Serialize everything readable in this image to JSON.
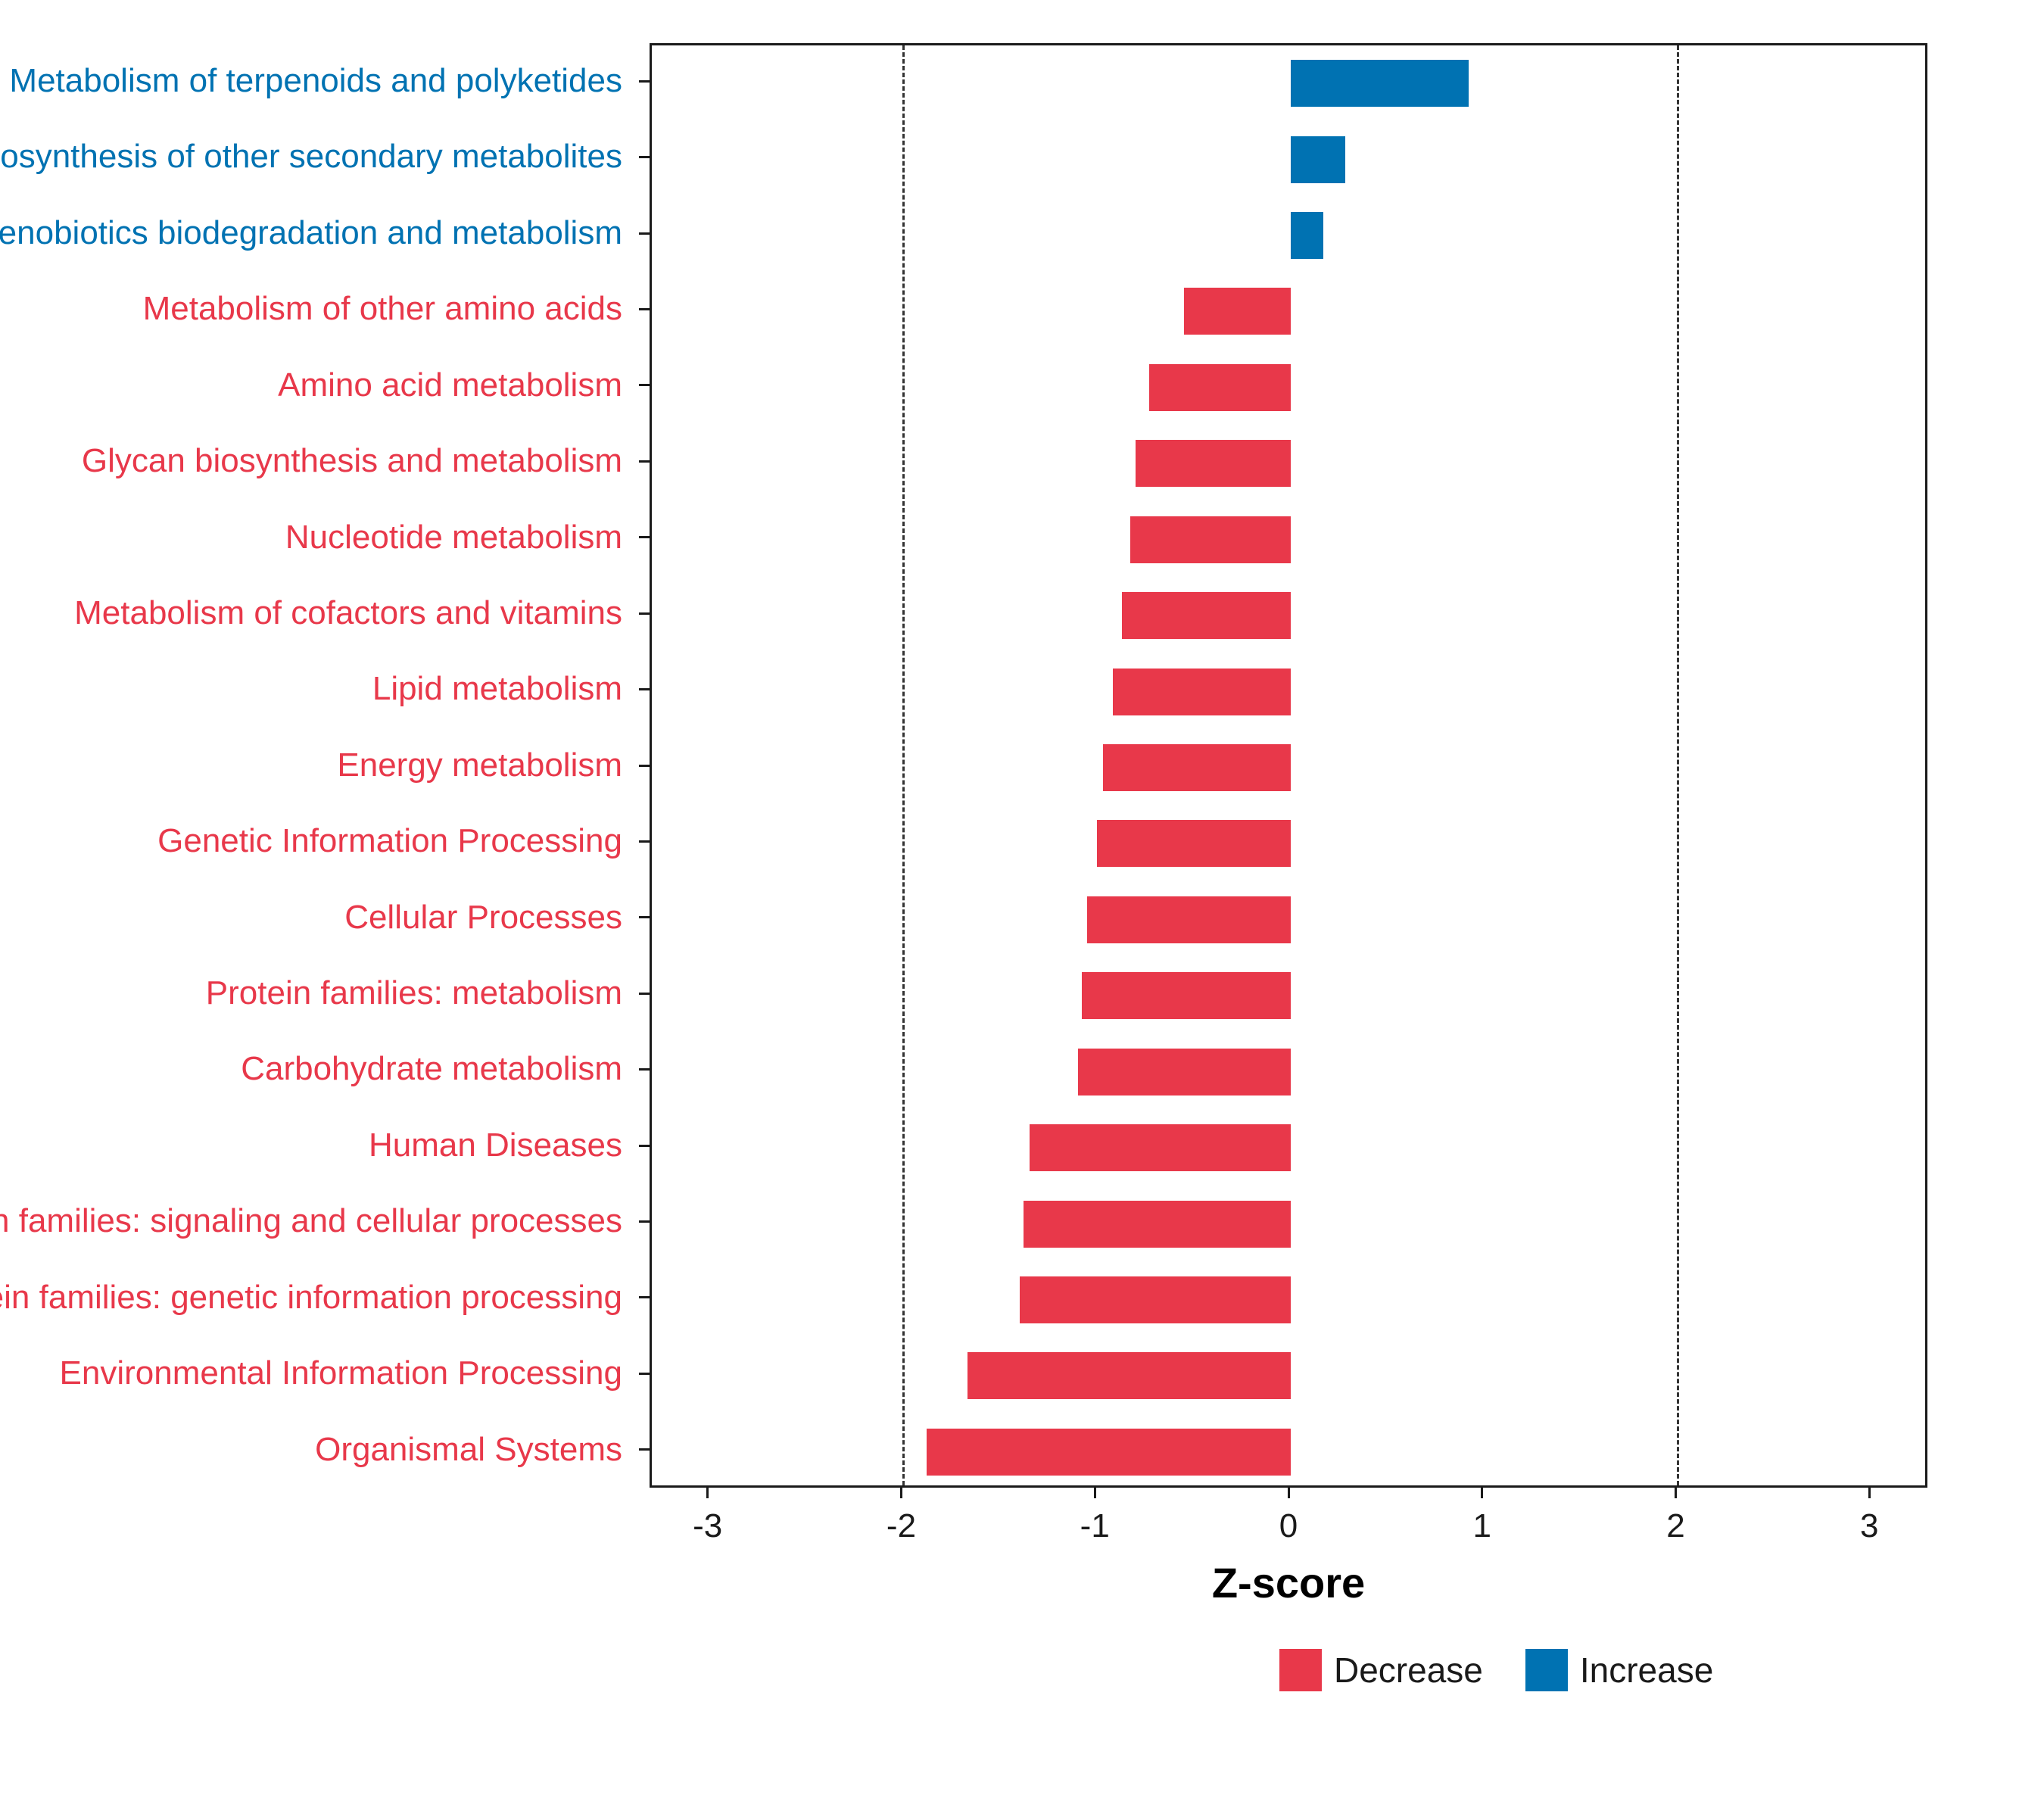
{
  "chart_data": {
    "type": "bar",
    "orientation": "horizontal",
    "title": "",
    "xlabel": "Z-score",
    "xlim": [
      -3.3,
      3.3
    ],
    "xticks": [
      -3,
      -2,
      -1,
      0,
      1,
      2,
      3
    ],
    "reference_lines": [
      -2,
      2
    ],
    "grid": false,
    "categories": [
      "Metabolism of terpenoids and polyketides",
      "Biosynthesis of other secondary metabolites",
      "Xenobiotics biodegradation and metabolism",
      "Metabolism of other amino acids",
      "Amino acid metabolism",
      "Glycan biosynthesis and metabolism",
      "Nucleotide metabolism",
      "Metabolism of cofactors and vitamins",
      "Lipid metabolism",
      "Energy metabolism",
      "Genetic Information Processing",
      "Cellular Processes",
      "Protein families: metabolism",
      "Carbohydrate metabolism",
      "Human Diseases",
      "Protein families: signaling and cellular processes",
      "Protein families: genetic information processing",
      "Environmental Information Processing",
      "Organismal Systems"
    ],
    "values": [
      0.92,
      0.28,
      0.17,
      -0.55,
      -0.73,
      -0.8,
      -0.83,
      -0.87,
      -0.92,
      -0.97,
      -1.0,
      -1.05,
      -1.08,
      -1.1,
      -1.35,
      -1.38,
      -1.4,
      -1.67,
      -1.88
    ],
    "groups": [
      "Increase",
      "Increase",
      "Increase",
      "Decrease",
      "Decrease",
      "Decrease",
      "Decrease",
      "Decrease",
      "Decrease",
      "Decrease",
      "Decrease",
      "Decrease",
      "Decrease",
      "Decrease",
      "Decrease",
      "Decrease",
      "Decrease",
      "Decrease",
      "Decrease"
    ],
    "colors": {
      "Decrease": "#E8384A",
      "Increase": "#0072B2"
    },
    "legend": {
      "position": "bottom",
      "entries": [
        {
          "label": "Decrease",
          "color": "#E8384A"
        },
        {
          "label": "Increase",
          "color": "#0072B2"
        }
      ]
    },
    "panel_border_color": "#1a1a1a",
    "reference_line_color": "#333333"
  }
}
